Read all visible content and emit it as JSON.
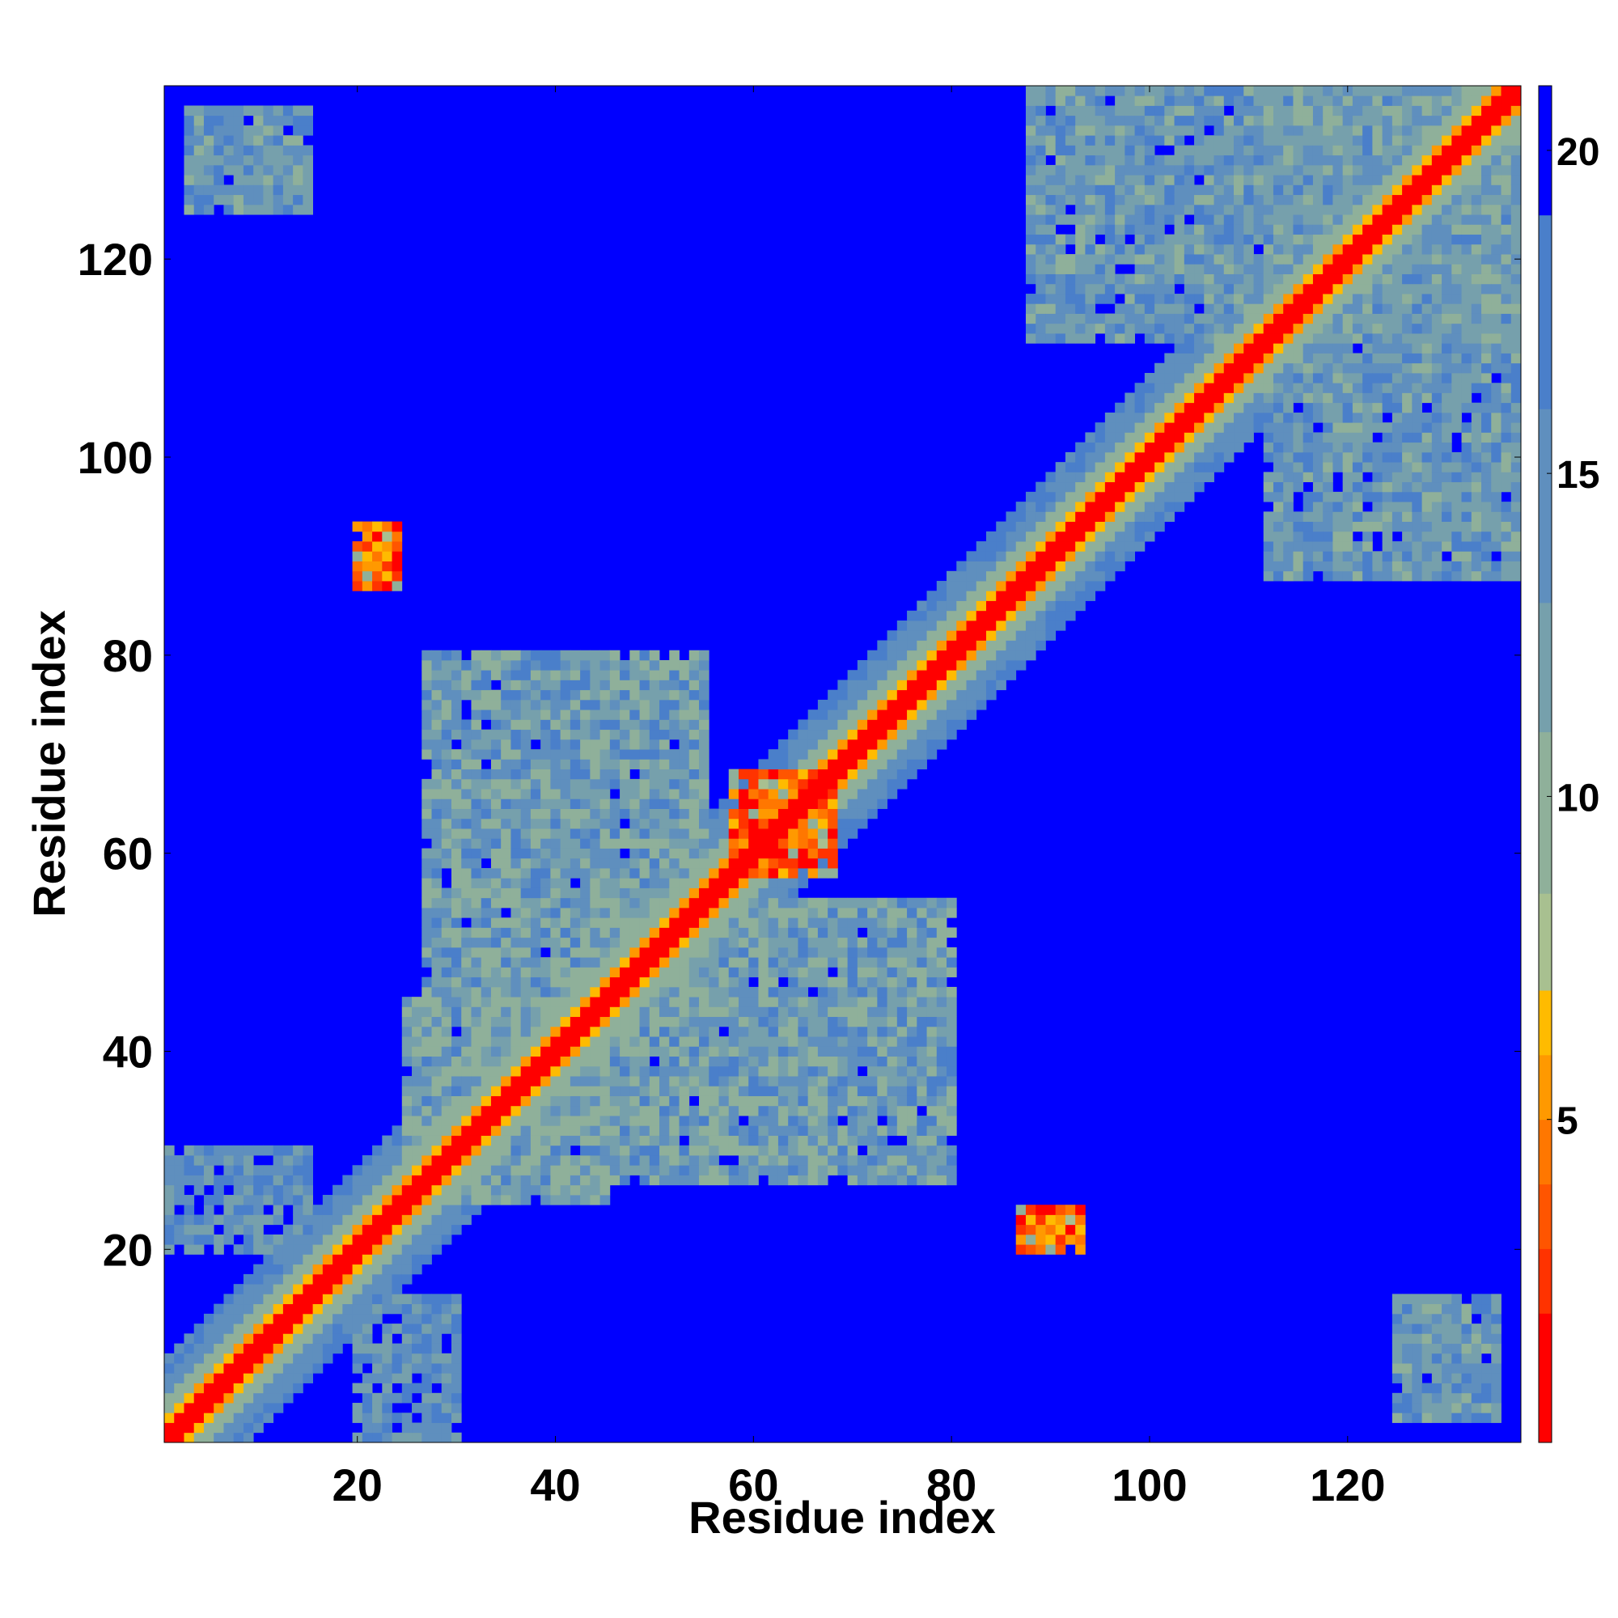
{
  "chart_data": {
    "type": "heatmap",
    "title": "",
    "xlabel": "Residue index",
    "ylabel": "Residue index",
    "xlim": [
      1,
      137
    ],
    "ylim": [
      1,
      137
    ],
    "n_residues": 137,
    "x_ticks": [
      20,
      40,
      60,
      80,
      100,
      120
    ],
    "y_ticks": [
      20,
      40,
      60,
      80,
      100,
      120
    ],
    "colorbar": {
      "range": [
        0,
        21
      ],
      "ticks": [
        5,
        10,
        15,
        20
      ],
      "colors": [
        "#ff0000",
        "#ff3300",
        "#ff5500",
        "#ff7700",
        "#ff9900",
        "#ffbb00",
        "#a8c090",
        "#8fb09a",
        "#76a0ac",
        "#5f8fbe",
        "#4a7fca",
        "#0000ff"
      ],
      "levels": [
        0,
        2,
        3,
        4,
        5,
        6,
        7,
        8.5,
        11,
        13,
        16,
        19,
        21
      ]
    },
    "contact_clusters": [
      {
        "x": [
          1,
          137
        ],
        "y": [
          1,
          137
        ],
        "kind": "diagonal"
      },
      {
        "x": [
          25,
          45
        ],
        "y": [
          25,
          45
        ],
        "level": 13
      },
      {
        "x": [
          27,
          55
        ],
        "y": [
          45,
          80
        ],
        "level": 14
      },
      {
        "x": [
          45,
          80
        ],
        "y": [
          27,
          55
        ],
        "level": 14
      },
      {
        "x": [
          58,
          68
        ],
        "y": [
          58,
          68
        ],
        "level": 6
      },
      {
        "x": [
          88,
          137
        ],
        "y": [
          112,
          137
        ],
        "level": 15
      },
      {
        "x": [
          112,
          137
        ],
        "y": [
          88,
          137
        ],
        "level": 15
      },
      {
        "x": [
          3,
          15
        ],
        "y": [
          125,
          135
        ],
        "level": 15
      },
      {
        "x": [
          125,
          135
        ],
        "y": [
          3,
          15
        ],
        "level": 15
      },
      {
        "x": [
          20,
          24
        ],
        "y": [
          87,
          93
        ],
        "level": 6
      },
      {
        "x": [
          87,
          93
        ],
        "y": [
          20,
          24
        ],
        "level": 6
      },
      {
        "x": [
          1,
          15
        ],
        "y": [
          20,
          30
        ],
        "level": 16
      },
      {
        "x": [
          20,
          30
        ],
        "y": [
          1,
          15
        ],
        "level": 16
      }
    ]
  }
}
